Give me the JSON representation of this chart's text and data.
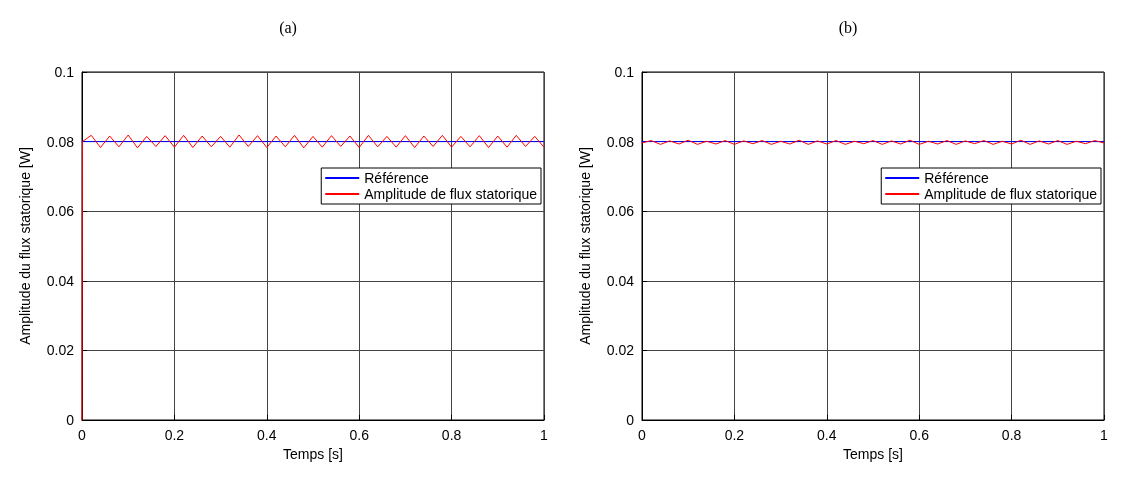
{
  "chart_data": [
    {
      "type": "line",
      "title": "(a)",
      "xlabel": "Temps [s]",
      "ylabel": "Amplitude du flux statorique [W]",
      "xlim": [
        0,
        1
      ],
      "xticks": [
        0,
        0.2,
        0.4,
        0.6,
        0.8,
        1
      ],
      "ylim": [
        0,
        0.1
      ],
      "yticks": [
        0,
        0.02,
        0.04,
        0.06,
        0.08,
        0.1
      ],
      "grid": true,
      "legend": "right",
      "marker": "none",
      "line_style": "solid",
      "series": [
        {
          "name": "Référence",
          "color": "#0000ff",
          "x": [
            0,
            1
          ],
          "values": [
            0.08,
            0.08
          ]
        },
        {
          "name": "Amplitude de flux statorique",
          "color": "#ff0000",
          "x": [
            0,
            0.001,
            0.02,
            0.04,
            0.06,
            0.08,
            0.1,
            0.12,
            0.14,
            0.16,
            0.18,
            0.2,
            0.22,
            0.24,
            0.26,
            0.28,
            0.3,
            0.32,
            0.34,
            0.36,
            0.38,
            0.4,
            0.42,
            0.44,
            0.46,
            0.48,
            0.5,
            0.52,
            0.54,
            0.56,
            0.58,
            0.6,
            0.62,
            0.64,
            0.66,
            0.68,
            0.7,
            0.72,
            0.74,
            0.76,
            0.78,
            0.8,
            0.82,
            0.84,
            0.86,
            0.88,
            0.9,
            0.92,
            0.94,
            0.96,
            0.98,
            1
          ],
          "values": [
            0,
            0.08,
            0.0818,
            0.0783,
            0.0816,
            0.0785,
            0.0819,
            0.0782,
            0.0815,
            0.0786,
            0.0817,
            0.0784,
            0.0818,
            0.0783,
            0.0816,
            0.0785,
            0.0815,
            0.0784,
            0.0819,
            0.0786,
            0.0817,
            0.0783,
            0.0816,
            0.0785,
            0.0818,
            0.0782,
            0.0815,
            0.0784,
            0.0817,
            0.0786,
            0.0816,
            0.0783,
            0.0818,
            0.0785,
            0.0815,
            0.0784,
            0.0817,
            0.0783,
            0.0816,
            0.0786,
            0.0818,
            0.0784,
            0.0815,
            0.0785,
            0.0817,
            0.0783,
            0.0816,
            0.0784,
            0.0818,
            0.0786,
            0.0815,
            0.0784
          ]
        }
      ]
    },
    {
      "type": "line",
      "title": "(b)",
      "xlabel": "Temps [s]",
      "ylabel": "Amplitude du flux statorique [W]",
      "xlim": [
        0,
        1
      ],
      "xticks": [
        0,
        0.2,
        0.4,
        0.6,
        0.8,
        1
      ],
      "ylim": [
        0,
        0.1
      ],
      "yticks": [
        0,
        0.02,
        0.04,
        0.06,
        0.08,
        0.1
      ],
      "grid": true,
      "legend": "right",
      "marker": "none",
      "line_style": "solid",
      "series": [
        {
          "name": "Référence",
          "color": "#0000ff",
          "x": [
            0,
            1
          ],
          "values": [
            0.08,
            0.08
          ]
        },
        {
          "name": "Amplitude de flux statorique",
          "color": "#ff0000",
          "x": [
            0,
            0.02,
            0.04,
            0.06,
            0.08,
            0.1,
            0.12,
            0.14,
            0.16,
            0.18,
            0.2,
            0.22,
            0.24,
            0.26,
            0.28,
            0.3,
            0.32,
            0.34,
            0.36,
            0.38,
            0.4,
            0.42,
            0.44,
            0.46,
            0.48,
            0.5,
            0.52,
            0.54,
            0.56,
            0.58,
            0.6,
            0.62,
            0.64,
            0.66,
            0.68,
            0.7,
            0.72,
            0.74,
            0.76,
            0.78,
            0.8,
            0.82,
            0.84,
            0.86,
            0.88,
            0.9,
            0.92,
            0.94,
            0.96,
            0.98,
            1
          ],
          "values": [
            0.0796,
            0.0803,
            0.0792,
            0.0802,
            0.0793,
            0.0804,
            0.0792,
            0.0801,
            0.0793,
            0.0803,
            0.0792,
            0.0802,
            0.0794,
            0.0803,
            0.0792,
            0.0801,
            0.0793,
            0.0804,
            0.0792,
            0.0802,
            0.0793,
            0.0803,
            0.0792,
            0.0801,
            0.0794,
            0.0803,
            0.0792,
            0.0802,
            0.0793,
            0.0804,
            0.0792,
            0.0801,
            0.0793,
            0.0803,
            0.0792,
            0.0802,
            0.0794,
            0.0803,
            0.0792,
            0.0801,
            0.0793,
            0.0804,
            0.0792,
            0.0802,
            0.0793,
            0.0803,
            0.0792,
            0.0801,
            0.0794,
            0.0803,
            0.0796
          ]
        }
      ]
    }
  ]
}
